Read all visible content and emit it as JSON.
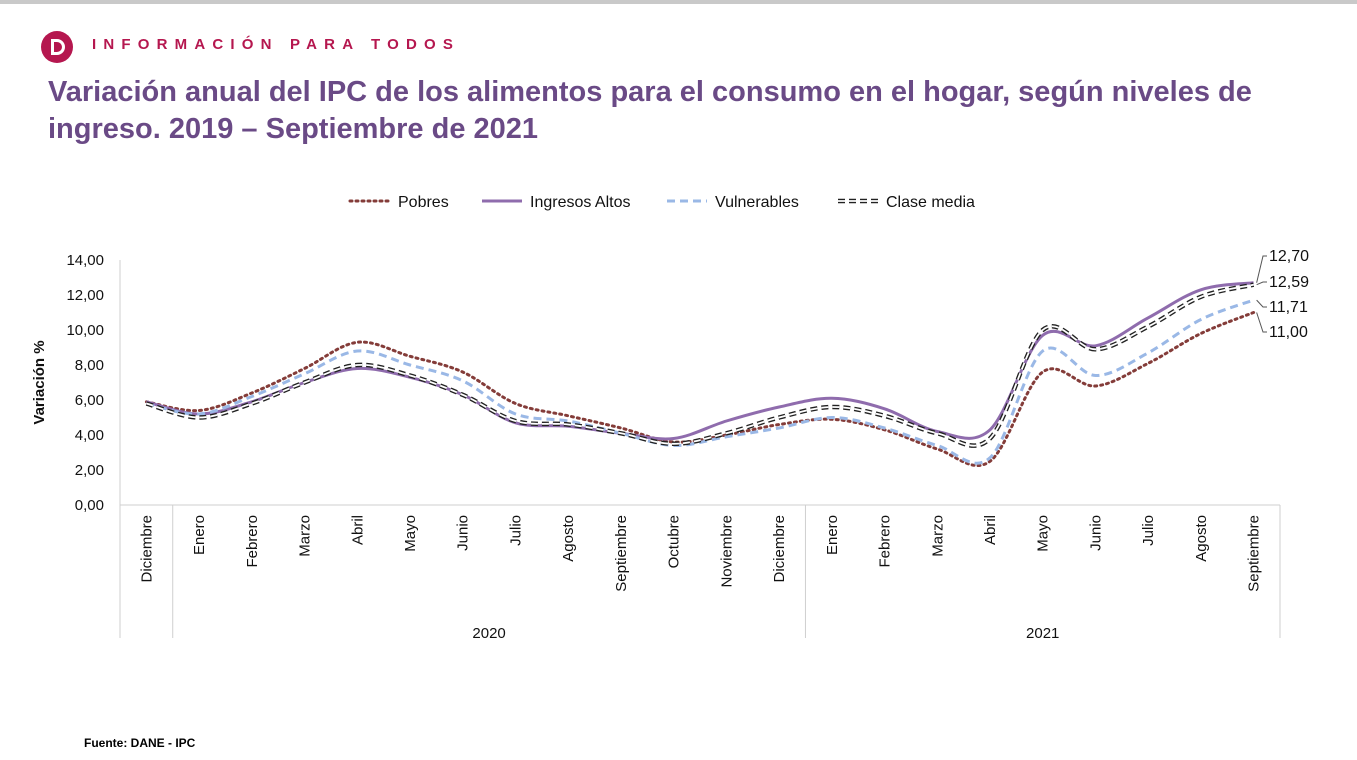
{
  "brand": {
    "text": "INFORMACIÓN PARA TODOS"
  },
  "title": "Variación anual del IPC de los alimentos para el consumo en el hogar, según niveles de ingreso. 2019 – Septiembre de 2021",
  "source": "Fuente: DANE - IPC",
  "chart_data": {
    "type": "line",
    "ylabel": "Variación %",
    "ylim": [
      0,
      14
    ],
    "yticks": [
      "0,00",
      "2,00",
      "4,00",
      "6,00",
      "8,00",
      "10,00",
      "12,00",
      "14,00"
    ],
    "categories": [
      "Diciembre",
      "Enero",
      "Febrero",
      "Marzo",
      "Abril",
      "Mayo",
      "Junio",
      "Julio",
      "Agosto",
      "Septiembre",
      "Octubre",
      "Noviembre",
      "Diciembre",
      "Enero",
      "Febrero",
      "Marzo",
      "Abril",
      "Mayo",
      "Junio",
      "Julio",
      "Agosto",
      "Septiembre"
    ],
    "year_groups": [
      {
        "label": "",
        "count": 1
      },
      {
        "label": "2020",
        "count": 12
      },
      {
        "label": "2021",
        "count": 9
      }
    ],
    "series": [
      {
        "name": "Pobres",
        "color": "#843c39",
        "dash": "2 4",
        "values": [
          5.9,
          5.4,
          6.4,
          7.8,
          9.3,
          8.5,
          7.6,
          5.8,
          5.1,
          4.4,
          3.6,
          4.0,
          4.6,
          4.9,
          4.3,
          3.2,
          2.5,
          7.6,
          6.8,
          8.1,
          9.8,
          11.0
        ]
      },
      {
        "name": "Ingresos Altos",
        "color": "#8f6cad",
        "dash": "",
        "values": [
          5.9,
          5.2,
          5.9,
          7.0,
          7.8,
          7.3,
          6.3,
          4.7,
          4.5,
          4.1,
          3.8,
          4.8,
          5.6,
          6.1,
          5.5,
          4.2,
          4.3,
          9.7,
          9.1,
          10.7,
          12.3,
          12.7
        ]
      },
      {
        "name": "Vulnerables",
        "color": "#9ab8e6",
        "dash": "8 5",
        "values": [
          5.8,
          5.2,
          6.2,
          7.5,
          8.8,
          8.0,
          7.1,
          5.2,
          4.8,
          4.1,
          3.4,
          3.9,
          4.4,
          5.0,
          4.4,
          3.4,
          2.7,
          8.8,
          7.4,
          8.7,
          10.6,
          11.71
        ]
      },
      {
        "name": "Clase media",
        "color": "#222222",
        "dash": "7 4",
        "values": [
          5.8,
          5.0,
          5.8,
          7.0,
          8.0,
          7.4,
          6.3,
          4.8,
          4.6,
          4.1,
          3.5,
          4.1,
          5.0,
          5.6,
          5.1,
          4.1,
          3.8,
          10.0,
          8.9,
          10.2,
          11.9,
          12.59
        ]
      }
    ],
    "end_labels": [
      "12,70",
      "12,59",
      "11,71",
      "11,00"
    ]
  }
}
